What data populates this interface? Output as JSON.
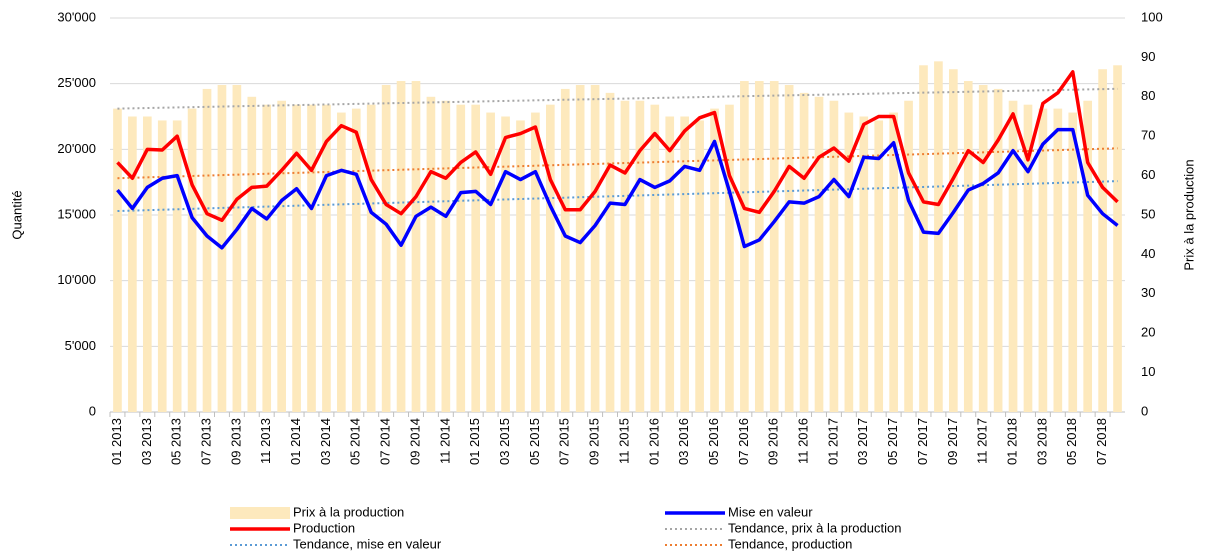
{
  "chart_data": {
    "type": "combo",
    "y_label": "Quantité",
    "y2_label": "Prix à la production",
    "categories": [
      "01 2013",
      null,
      "03 2013",
      null,
      "05 2013",
      null,
      "07 2013",
      null,
      "09 2013",
      null,
      "11 2013",
      null,
      "01 2014",
      null,
      "03 2014",
      null,
      "05 2014",
      null,
      "07 2014",
      null,
      "09 2014",
      null,
      "11 2014",
      null,
      "01 2015",
      null,
      "03 2015",
      null,
      "05 2015",
      null,
      "07 2015",
      null,
      "09 2015",
      null,
      "11 2015",
      null,
      "01 2016",
      null,
      "03 2016",
      null,
      "05 2016",
      null,
      "07 2016",
      null,
      "09 2016",
      null,
      "11 2016",
      null,
      "01 2017",
      null,
      "03 2017",
      null,
      "05 2017",
      null,
      "07 2017",
      null,
      "09 2017",
      null,
      "11 2017",
      null,
      "01 2018",
      null,
      "03 2018",
      null,
      "05 2018",
      null,
      "07 2018",
      null
    ],
    "ylim": [
      0,
      30000
    ],
    "yticks": [
      0,
      {
        "value": 5000,
        "label": "5'000"
      },
      {
        "value": 10000,
        "label": "10'000"
      },
      {
        "value": 15000,
        "label": "15'000"
      },
      {
        "value": 20000,
        "label": "20'000"
      },
      {
        "value": 25000,
        "label": "25'000"
      },
      {
        "value": 30000,
        "label": "30'000"
      }
    ],
    "y2lim": [
      0,
      100
    ],
    "y2ticks": [
      0,
      10,
      20,
      30,
      40,
      50,
      60,
      70,
      80,
      90,
      100
    ],
    "grid": true,
    "legend": "bottom",
    "series": [
      {
        "name": "Prix à la production",
        "kind": "bar",
        "axis": "y2",
        "color": "#fde9bd",
        "values": [
          77,
          75,
          75,
          74,
          74,
          77,
          82,
          83,
          83,
          80,
          78,
          79,
          78,
          78,
          78,
          76,
          77,
          78,
          83,
          84,
          84,
          80,
          79,
          78,
          78,
          76,
          75,
          74,
          76,
          78,
          82,
          83,
          83,
          81,
          79,
          79,
          78,
          75,
          75,
          74,
          77,
          78,
          84,
          84,
          84,
          83,
          81,
          80,
          79,
          76,
          75,
          74,
          76,
          79,
          88,
          89,
          87,
          84,
          83,
          82,
          79,
          78,
          77,
          77,
          76,
          79,
          87,
          88
        ]
      },
      {
        "name": "Mise en valeur",
        "kind": "line",
        "color": "#0000ff",
        "values": [
          16900,
          15500,
          17100,
          17800,
          18000,
          14800,
          13400,
          12500,
          13900,
          15500,
          14700,
          16100,
          17000,
          15500,
          18000,
          18400,
          18100,
          15200,
          14300,
          12700,
          14900,
          15600,
          14900,
          16700,
          16800,
          15800,
          18300,
          17700,
          18300,
          15700,
          13400,
          12900,
          14200,
          15900,
          15800,
          17700,
          17100,
          17600,
          18700,
          18400,
          20600,
          16800,
          12600,
          13100,
          14500,
          16000,
          15900,
          16400,
          17700,
          16400,
          19400,
          19300,
          20500,
          16100,
          13700,
          13600,
          15200,
          16900,
          17400,
          18200,
          19900,
          18300,
          20400,
          21500,
          21500,
          16500,
          15100,
          14200
        ]
      },
      {
        "name": "Production",
        "kind": "line",
        "color": "#ff0000",
        "values": [
          19000,
          17800,
          20000,
          19950,
          21000,
          17300,
          15100,
          14600,
          16200,
          17100,
          17200,
          18400,
          19700,
          18400,
          20600,
          21800,
          21300,
          17700,
          15800,
          15100,
          16400,
          18300,
          17800,
          19000,
          19800,
          18100,
          20900,
          21200,
          21700,
          17700,
          15400,
          15400,
          16800,
          18800,
          18200,
          19900,
          21200,
          19900,
          21400,
          22400,
          22800,
          18000,
          15500,
          15200,
          16800,
          18700,
          17800,
          19400,
          20100,
          19100,
          21900,
          22500,
          22500,
          18200,
          16000,
          15800,
          17800,
          19900,
          19000,
          20700,
          22700,
          19200,
          23500,
          24300,
          25900,
          19000,
          17100,
          16000
        ]
      },
      {
        "name": "Tendance, prix à la production",
        "kind": "trend",
        "axis": "y2",
        "color": "#a6a6a6",
        "values": [
          77,
          77.075,
          77.15,
          77.225,
          77.3,
          77.375,
          77.45,
          77.525,
          77.6,
          77.675,
          77.75,
          77.825,
          77.9,
          77.975,
          78.05,
          78.125,
          78.2,
          78.275,
          78.35,
          78.425,
          78.5,
          78.575,
          78.65,
          78.725,
          78.8,
          78.875,
          78.95,
          79.025,
          79.1,
          79.175,
          79.25,
          79.325,
          79.4,
          79.475,
          79.55,
          79.625,
          79.7,
          79.775,
          79.85,
          79.925,
          80,
          80.075,
          80.15,
          80.225,
          80.3,
          80.375,
          80.45,
          80.525,
          80.6,
          80.675,
          80.75,
          80.825,
          80.9,
          80.975,
          81.05,
          81.125,
          81.2,
          81.275,
          81.35,
          81.425,
          81.5,
          81.575,
          81.65,
          81.725,
          81.8,
          81.875,
          81.95,
          82.025
        ]
      },
      {
        "name": "Tendance, mise en valeur",
        "kind": "trend",
        "color": "#5b9bd5",
        "values": [
          15300,
          15334,
          15368,
          15402,
          15436,
          15470,
          15504,
          15538,
          15572,
          15606,
          15640,
          15674,
          15708,
          15742,
          15776,
          15810,
          15844,
          15878,
          15912,
          15946,
          15980,
          16014,
          16048,
          16082,
          16116,
          16150,
          16184,
          16218,
          16252,
          16286,
          16320,
          16354,
          16388,
          16422,
          16456,
          16490,
          16524,
          16558,
          16592,
          16626,
          16660,
          16694,
          16728,
          16762,
          16796,
          16830,
          16864,
          16898,
          16932,
          16966,
          17000,
          17034,
          17068,
          17102,
          17136,
          17170,
          17204,
          17238,
          17272,
          17306,
          17340,
          17374,
          17408,
          17442,
          17476,
          17510,
          17544,
          17578
        ]
      },
      {
        "name": "Tendance, production",
        "kind": "trend",
        "color": "#ed7d31",
        "values": [
          17800,
          17834,
          17868,
          17902,
          17936,
          17970,
          18004,
          18038,
          18072,
          18106,
          18140,
          18174,
          18208,
          18242,
          18276,
          18310,
          18344,
          18378,
          18412,
          18446,
          18480,
          18514,
          18548,
          18582,
          18616,
          18650,
          18684,
          18718,
          18752,
          18786,
          18820,
          18854,
          18888,
          18922,
          18956,
          18990,
          19024,
          19058,
          19092,
          19126,
          19160,
          19194,
          19228,
          19262,
          19296,
          19330,
          19364,
          19398,
          19432,
          19466,
          19500,
          19534,
          19568,
          19602,
          19636,
          19670,
          19704,
          19738,
          19772,
          19806,
          19840,
          19874,
          19908,
          19942,
          19976,
          20010,
          20044,
          20078
        ]
      }
    ]
  }
}
